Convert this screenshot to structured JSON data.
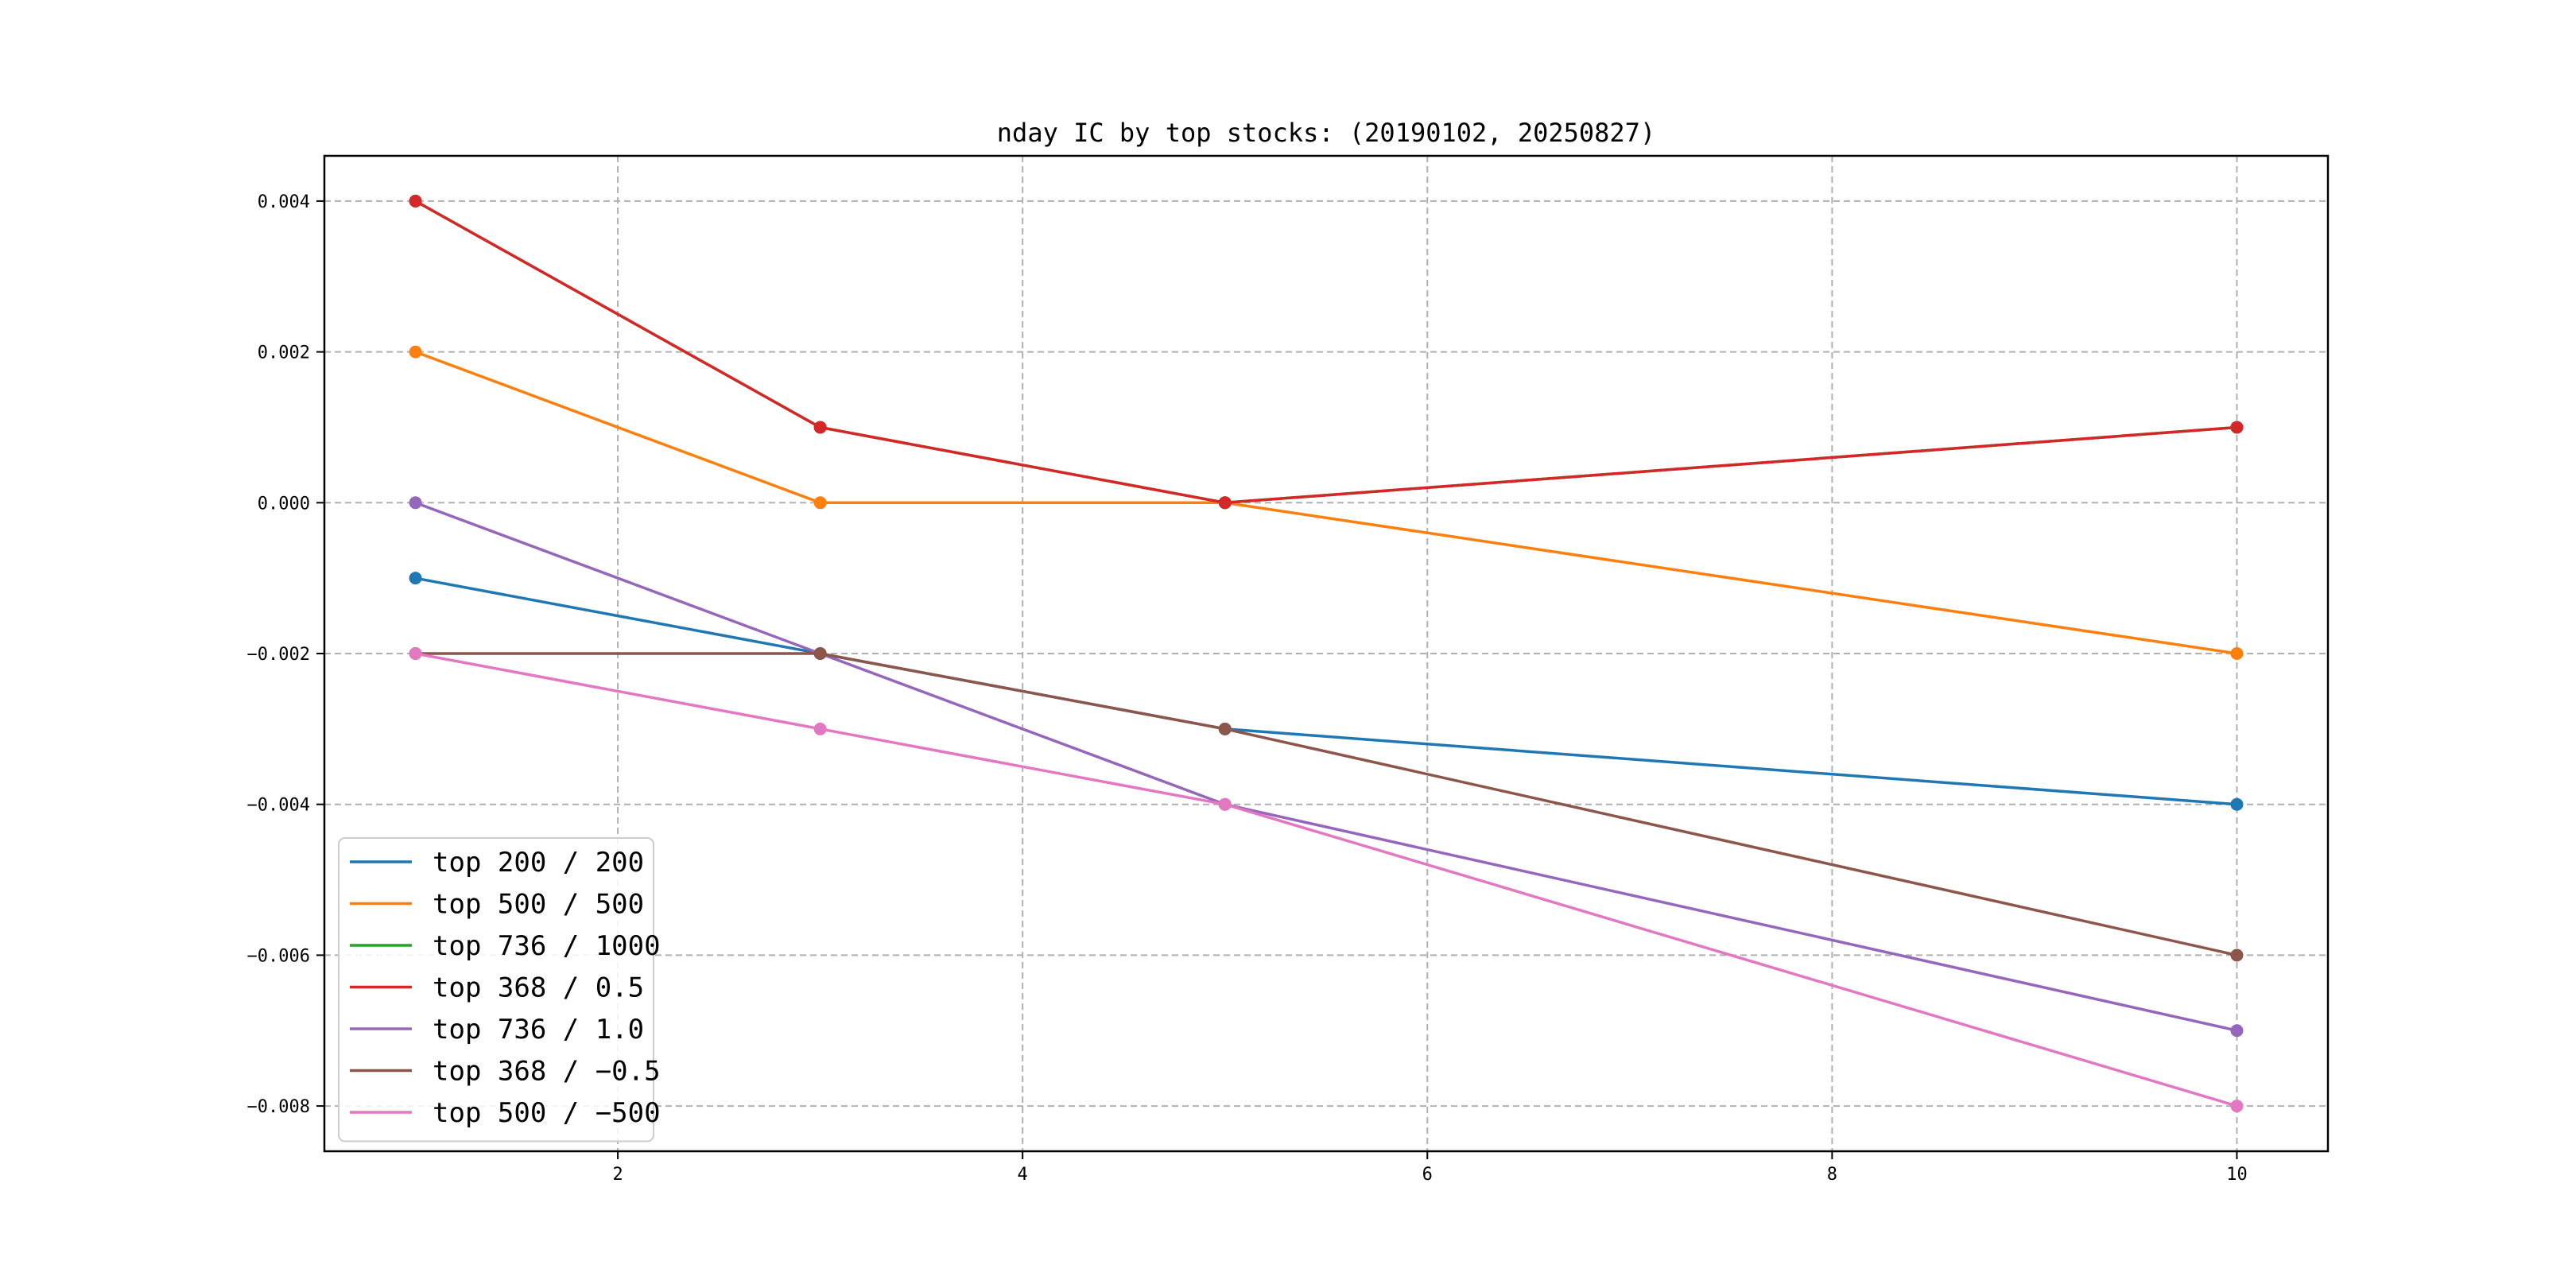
{
  "chart_data": {
    "type": "line",
    "title": "nday IC by top stocks: (20190102, 20250827)",
    "xlabel": "",
    "ylabel": "",
    "x": [
      1,
      3,
      5,
      10
    ],
    "xlim": [
      0.55,
      10.45
    ],
    "ylim": [
      -0.0086,
      0.0046
    ],
    "xticks": [
      2,
      4,
      6,
      8,
      10
    ],
    "xtick_labels": [
      "2",
      "4",
      "6",
      "8",
      "10"
    ],
    "yticks": [
      0.004,
      0.002,
      0.0,
      -0.002,
      -0.004,
      -0.006,
      -0.008
    ],
    "ytick_labels": [
      "0.004",
      "0.002",
      "0.000",
      "−0.002",
      "−0.004",
      "−0.006",
      "−0.008"
    ],
    "grid": true,
    "legend_position": "lower-left",
    "series": [
      {
        "name": "top 200 / 200",
        "color": "#1f77b4",
        "values": [
          -0.001,
          -0.002,
          -0.003,
          -0.004
        ]
      },
      {
        "name": "top 500 / 500",
        "color": "#ff7f0e",
        "values": [
          0.002,
          0.0,
          0.0,
          -0.002
        ]
      },
      {
        "name": "top 736 / 1000",
        "color": "#2ca02c",
        "values": [
          0.004,
          0.001,
          0.0,
          0.001
        ]
      },
      {
        "name": "top 368 / 0.5",
        "color": "#d62728",
        "values": [
          0.004,
          0.001,
          0.0,
          0.001
        ]
      },
      {
        "name": "top 736 / 1.0",
        "color": "#9467bd",
        "values": [
          0.0,
          -0.002,
          -0.004,
          -0.007
        ]
      },
      {
        "name": "top 368 / -0.5",
        "color": "#8c564b",
        "values": [
          -0.002,
          -0.002,
          -0.003,
          -0.006
        ]
      },
      {
        "name": "top 500 / -500",
        "color": "#e377c2",
        "values": [
          -0.002,
          -0.003,
          -0.004,
          -0.008
        ]
      }
    ],
    "legend_labels": [
      "top 200 / 200",
      "top 500 / 500",
      "top 736 / 1000",
      "top 368 / 0.5",
      "top 736 / 1.0",
      "top 368 / −0.5",
      "top 500 / −500"
    ]
  }
}
